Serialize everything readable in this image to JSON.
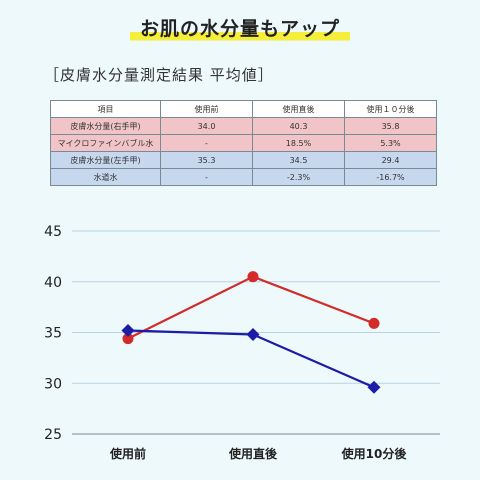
{
  "headline": "お肌の水分量もアップ",
  "section_title": "［皮膚水分量測定結果 平均値］",
  "table": {
    "headers": [
      "項目",
      "使用前",
      "使用直後",
      "使用１０分後"
    ],
    "rows": [
      {
        "label": "皮膚水分量(右手甲)",
        "values": [
          "34.0",
          "40.3",
          "35.8"
        ],
        "group": "red"
      },
      {
        "label": "マイクロファインバブル水",
        "values": [
          "-",
          "18.5%",
          "5.3%"
        ],
        "group": "red"
      },
      {
        "label": "皮膚水分量(左手甲)",
        "values": [
          "35.3",
          "34.5",
          "29.4"
        ],
        "group": "blue"
      },
      {
        "label": "水道水",
        "values": [
          "-",
          "-2.3%",
          "-16.7%"
        ],
        "group": "blue"
      }
    ]
  },
  "colors": {
    "red": "#d42a2a",
    "blue": "#1c1ca8",
    "red_row": "#f1c4c7",
    "blue_row": "#c7d8ee"
  },
  "chart_data": {
    "type": "line",
    "categories": [
      "使用前",
      "使用直後",
      "使用10分後"
    ],
    "series": [
      {
        "values": [
          34.4,
          40.5,
          35.9
        ],
        "color": "#d42a2a",
        "marker": "circle"
      },
      {
        "values": [
          35.2,
          34.8,
          29.6
        ],
        "color": "#1c1ca8",
        "marker": "diamond"
      }
    ],
    "yticks": [
      "45",
      "40",
      "35",
      "30",
      "25"
    ],
    "ylim": [
      25,
      45
    ],
    "grid": true
  }
}
